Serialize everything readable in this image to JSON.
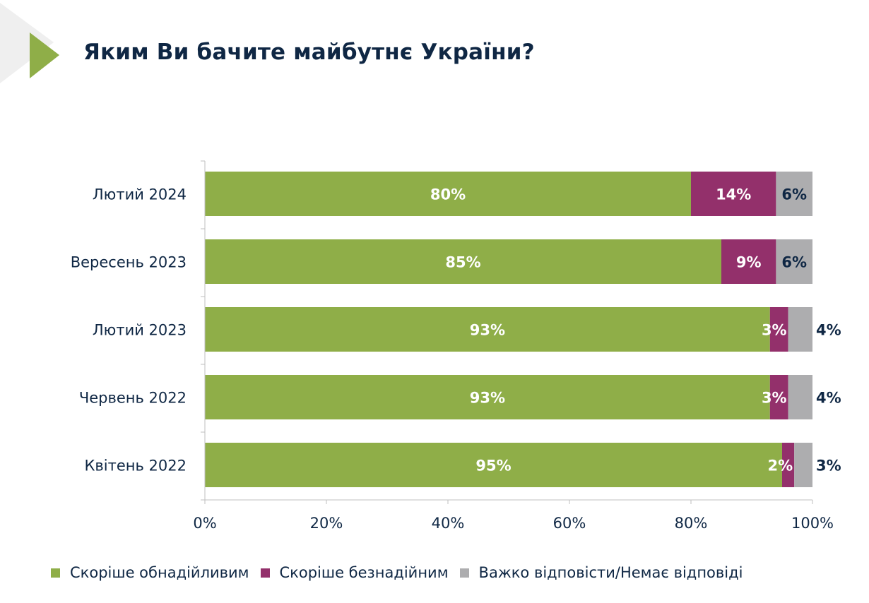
{
  "title": "Яким Ви бачите майбутнє України?",
  "chart_data": {
    "type": "bar",
    "orientation": "horizontal",
    "stacked": true,
    "categories": [
      "Лютий 2024",
      "Вересень 2023",
      "Лютий 2023",
      "Червень 2022",
      "Квітень 2022"
    ],
    "series": [
      {
        "name": "Скоріше обнадійливим",
        "color": "#8fae48",
        "values": [
          80,
          85,
          93,
          93,
          95
        ],
        "labels": [
          "80%",
          "85%",
          "93%",
          "93%",
          "95%"
        ]
      },
      {
        "name": "Скоріше безнадійним",
        "color": "#93306b",
        "values": [
          14,
          9,
          3,
          3,
          2
        ],
        "labels": [
          "14%",
          "9%",
          "3%",
          "3%",
          "2%"
        ]
      },
      {
        "name": "Важко відповісти/Немає відповіді",
        "color": "#adadaf",
        "values": [
          6,
          6,
          4,
          4,
          3
        ],
        "labels": [
          "6%",
          "6%",
          "4%",
          "4%",
          "3%"
        ]
      }
    ],
    "xlim": [
      0,
      100
    ],
    "xticks": [
      "0%",
      "20%",
      "40%",
      "60%",
      "80%",
      "100%"
    ],
    "grid": false,
    "legend": "bottom"
  },
  "colors": {
    "title": "#0f2744",
    "accent": "#8fae48"
  }
}
